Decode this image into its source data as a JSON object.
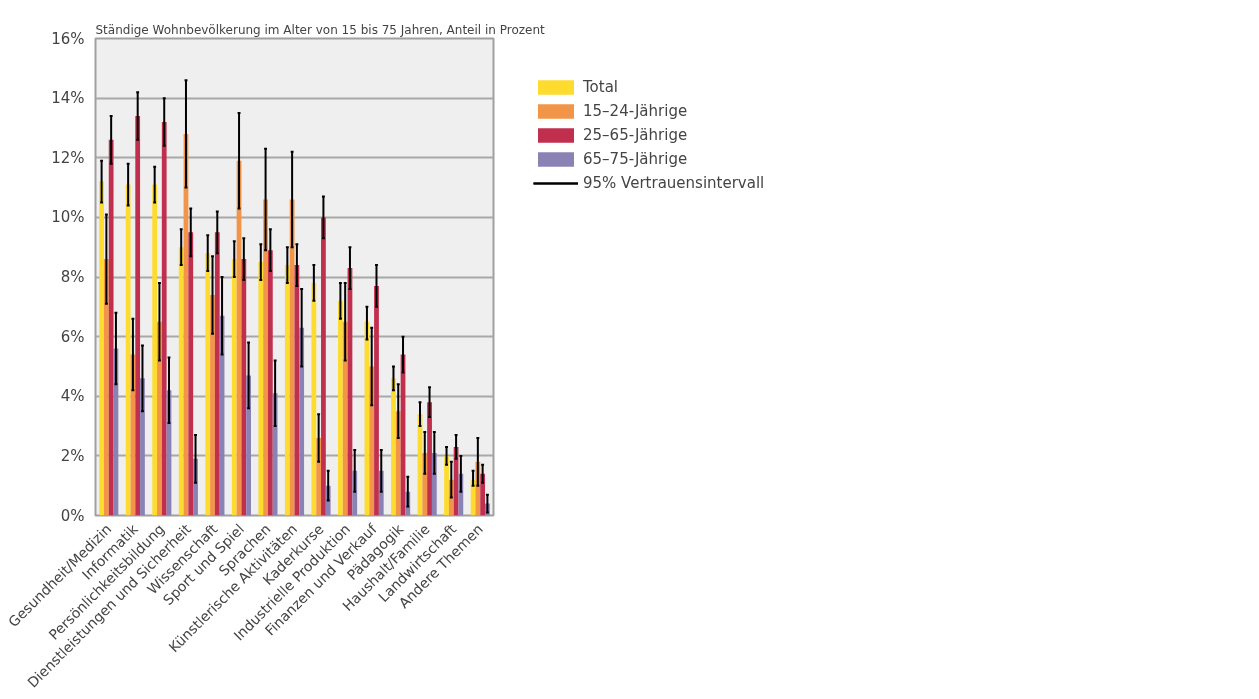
{
  "chart_data": {
    "type": "bar",
    "title": "Ständige Wohnbevölkerung im Alter von 15 bis 75 Jahren, Anteil in Prozent",
    "categories": [
      "Gesundheit/Medizin",
      "Informatik",
      "Persönlichkeitsbildung",
      "Dienstleistungen und Sicherheit",
      "Wissenschaft",
      "Sport und Spiel",
      "Sprachen",
      "Künstlerische Aktivitäten",
      "Kaderkurse",
      "Industrielle Produktion",
      "Finanzen und Verkauf",
      "Pädagogik",
      "Haushalt/Familie",
      "Landwirtschaft",
      "Andere Themen"
    ],
    "series": [
      {
        "name": "Total",
        "color": "#fddc2f",
        "values": [
          11.2,
          11.1,
          11.1,
          9.0,
          8.8,
          8.6,
          8.5,
          8.4,
          7.8,
          7.2,
          6.5,
          4.6,
          3.4,
          2.0,
          1.2
        ],
        "errors": [
          [
            10.5,
            11.9
          ],
          [
            10.4,
            11.8
          ],
          [
            10.5,
            11.7
          ],
          [
            8.4,
            9.6
          ],
          [
            8.2,
            9.4
          ],
          [
            8.0,
            9.2
          ],
          [
            7.9,
            9.1
          ],
          [
            7.8,
            9.0
          ],
          [
            7.2,
            8.4
          ],
          [
            6.6,
            7.8
          ],
          [
            5.9,
            7.0
          ],
          [
            4.2,
            5.0
          ],
          [
            3.0,
            3.8
          ],
          [
            1.7,
            2.3
          ],
          [
            1.0,
            1.5
          ]
        ]
      },
      {
        "name": "15–24-Jährige",
        "color": "#f39548",
        "values": [
          8.6,
          5.4,
          6.5,
          12.8,
          7.4,
          11.9,
          10.6,
          10.6,
          2.6,
          6.5,
          5.0,
          3.5,
          2.1,
          1.2,
          1.8
        ],
        "errors": [
          [
            7.1,
            10.1
          ],
          [
            4.2,
            6.6
          ],
          [
            5.2,
            7.8
          ],
          [
            11.0,
            14.6
          ],
          [
            6.1,
            8.7
          ],
          [
            10.3,
            13.5
          ],
          [
            8.9,
            12.3
          ],
          [
            9.0,
            12.2
          ],
          [
            1.8,
            3.4
          ],
          [
            5.2,
            7.8
          ],
          [
            3.7,
            6.3
          ],
          [
            2.6,
            4.4
          ],
          [
            1.4,
            2.8
          ],
          [
            0.6,
            1.8
          ],
          [
            1.0,
            2.6
          ]
        ]
      },
      {
        "name": "25–65-Jährige",
        "color": "#c12f4e",
        "values": [
          12.6,
          13.4,
          13.2,
          9.5,
          9.5,
          8.6,
          8.9,
          8.4,
          10.0,
          8.3,
          7.7,
          5.4,
          3.8,
          2.3,
          1.4
        ],
        "errors": [
          [
            11.8,
            13.4
          ],
          [
            12.6,
            14.2
          ],
          [
            12.4,
            14.0
          ],
          [
            8.7,
            10.3
          ],
          [
            8.8,
            10.2
          ],
          [
            7.9,
            9.3
          ],
          [
            8.2,
            9.6
          ],
          [
            7.7,
            9.1
          ],
          [
            9.3,
            10.7
          ],
          [
            7.6,
            9.0
          ],
          [
            7.0,
            8.4
          ],
          [
            4.8,
            6.0
          ],
          [
            3.3,
            4.3
          ],
          [
            1.9,
            2.7
          ],
          [
            1.1,
            1.7
          ]
        ]
      },
      {
        "name": "65–75-Jährige",
        "color": "#8a82b5",
        "values": [
          5.6,
          4.6,
          4.2,
          1.9,
          6.7,
          4.7,
          4.1,
          6.3,
          1.0,
          1.5,
          1.5,
          0.8,
          2.1,
          1.4,
          0.4
        ],
        "errors": [
          [
            4.4,
            6.8
          ],
          [
            3.5,
            5.7
          ],
          [
            3.1,
            5.3
          ],
          [
            1.1,
            2.7
          ],
          [
            5.4,
            8.0
          ],
          [
            3.6,
            5.8
          ],
          [
            3.0,
            5.2
          ],
          [
            5.0,
            7.6
          ],
          [
            0.5,
            1.5
          ],
          [
            0.8,
            2.2
          ],
          [
            0.8,
            2.2
          ],
          [
            0.3,
            1.3
          ],
          [
            1.4,
            2.8
          ],
          [
            0.8,
            2.0
          ],
          [
            0.1,
            0.7
          ]
        ]
      }
    ],
    "ylim": [
      0,
      16
    ],
    "yticks": [
      {
        "value": 0,
        "label": "0%"
      },
      {
        "value": 2,
        "label": "2%"
      },
      {
        "value": 4,
        "label": "4%"
      },
      {
        "value": 6,
        "label": "6%"
      },
      {
        "value": 8,
        "label": "8%"
      },
      {
        "value": 10,
        "label": "10%"
      },
      {
        "value": 12,
        "label": "12%"
      },
      {
        "value": 14,
        "label": "14%"
      },
      {
        "value": 16,
        "label": "16%"
      }
    ],
    "grid": "y",
    "legend": "top right",
    "annotations": [
      "95% Vertrauensintervall"
    ]
  }
}
